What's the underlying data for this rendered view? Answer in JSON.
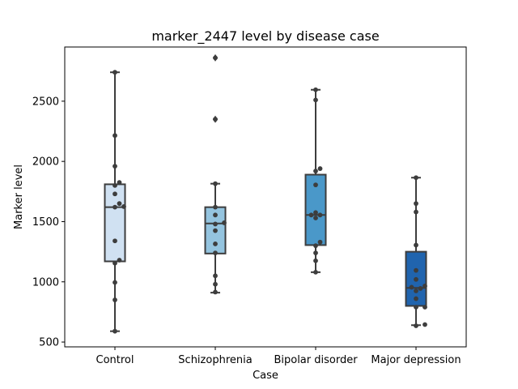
{
  "chart_data": {
    "type": "box",
    "title": "marker_2447 level by disease case",
    "xlabel": "Case",
    "ylabel": "Marker level",
    "ylim": [
      460,
      2950
    ],
    "yticks": [
      500,
      1000,
      1500,
      2000,
      2500
    ],
    "ytick_labels": [
      "500",
      "1000",
      "1500",
      "2000",
      "2500"
    ],
    "grid": false,
    "categories": [
      "Control",
      "Schizophrenia",
      "Bipolar disorder",
      "Major depression"
    ],
    "box_colors": [
      "#d0e1f2",
      "#94c4df",
      "#4a98c9",
      "#2064ae"
    ],
    "boxes": [
      {
        "q1": 1170,
        "median": 1620,
        "q3": 1810,
        "whisker_low": 590,
        "whisker_high": 2740,
        "outliers": []
      },
      {
        "q1": 1235,
        "median": 1485,
        "q3": 1620,
        "whisker_low": 910,
        "whisker_high": 1815,
        "outliers": [
          2350,
          2860
        ]
      },
      {
        "q1": 1305,
        "median": 1555,
        "q3": 1890,
        "whisker_low": 1080,
        "whisker_high": 2595,
        "outliers": []
      },
      {
        "q1": 800,
        "median": 950,
        "q3": 1250,
        "whisker_low": 640,
        "whisker_high": 1865,
        "outliers": []
      }
    ],
    "points": [
      [
        2740,
        2215,
        1960,
        1825,
        1800,
        1730,
        1650,
        1625,
        1620,
        1340,
        1180,
        1155,
        995,
        850,
        590
      ],
      [
        2860,
        2350,
        1815,
        1620,
        1555,
        1490,
        1480,
        1425,
        1315,
        1240,
        1050,
        980,
        915
      ],
      [
        2595,
        2510,
        1940,
        1920,
        1805,
        1575,
        1555,
        1555,
        1530,
        1330,
        1300,
        1240,
        1175,
        1080
      ],
      [
        1865,
        1650,
        1580,
        1305,
        1095,
        1020,
        965,
        955,
        945,
        925,
        860,
        790,
        790,
        645,
        635
      ]
    ]
  }
}
